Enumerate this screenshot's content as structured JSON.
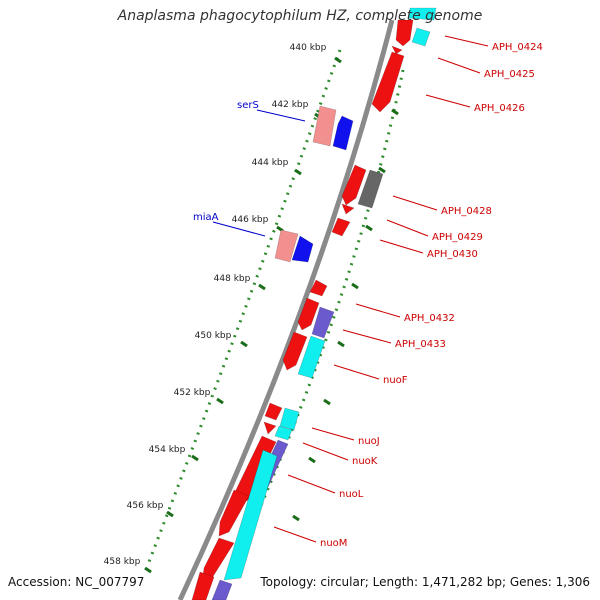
{
  "title": "Anaplasma phagocytophilum HZ, complete genome",
  "footer": {
    "accession": "Accession: NC_007797",
    "topology": "Topology: circular; Length: 1,471,282 bp; Genes: 1,306"
  },
  "colors": {
    "backbone": "#8a8a8a",
    "ruler_dots": "#2e8b2e",
    "forward_label": "#0000cc",
    "reverse_label": "#cc0000",
    "red_gene": "#ee1111",
    "pink_gene": "#f29090",
    "blue_gene": "#1111ee",
    "cyan_gene": "#11eeee",
    "purple_gene": "#6a5acd",
    "gray_gene": "#555555"
  },
  "ruler_labels": [
    "440 kbp",
    "442 kbp",
    "444 kbp",
    "446 kbp",
    "448 kbp",
    "450 kbp",
    "452 kbp",
    "454 kbp",
    "456 kbp",
    "458 kbp"
  ],
  "forward_gene_labels": [
    "serS",
    "miaA"
  ],
  "reverse_gene_labels": [
    "APH_0424",
    "APH_0425",
    "APH_0426",
    "APH_0428",
    "APH_0429",
    "APH_0430",
    "APH_0432",
    "APH_0433",
    "nuoF",
    "nuoJ",
    "nuoK",
    "nuoL",
    "nuoM"
  ]
}
